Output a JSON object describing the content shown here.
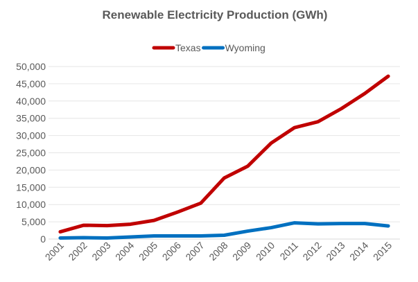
{
  "chart_data": {
    "type": "line",
    "title": "Renewable Electricity Production (GWh)",
    "xlabel": "",
    "ylabel": "",
    "categories": [
      "2001",
      "2002",
      "2003",
      "2004",
      "2005",
      "2006",
      "2007",
      "2008",
      "2009",
      "2010",
      "2011",
      "2012",
      "2013",
      "2014",
      "2015"
    ],
    "ylim": [
      0,
      50000
    ],
    "yticks": [
      "0",
      "5,000",
      "10,000",
      "15,000",
      "20,000",
      "25,000",
      "30,000",
      "35,000",
      "40,000",
      "45,000",
      "50,000"
    ],
    "grid": true,
    "legend": "top",
    "series": [
      {
        "name": "Texas",
        "color": "#c00000",
        "values": [
          2100,
          4000,
          3900,
          4300,
          5400,
          7800,
          10400,
          17700,
          21100,
          27800,
          32300,
          34000,
          37800,
          42200,
          47200
        ]
      },
      {
        "name": "Wyoming",
        "color": "#0070c0",
        "values": [
          300,
          400,
          300,
          600,
          900,
          900,
          900,
          1100,
          2300,
          3300,
          4700,
          4400,
          4500,
          4500,
          3800
        ]
      }
    ]
  }
}
